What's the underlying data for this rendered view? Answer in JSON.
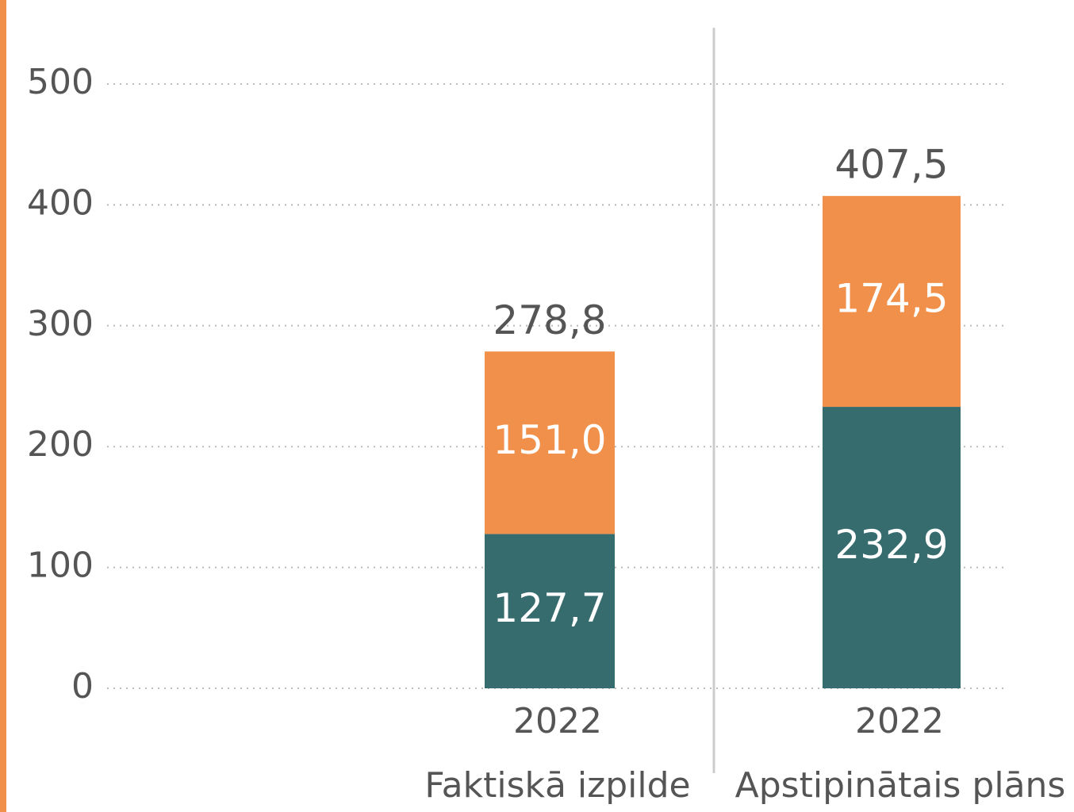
{
  "chart_data": {
    "type": "bar",
    "stacked": true,
    "groups": [
      "Faktiskā izpilde",
      "Apstipinātais plāns"
    ],
    "categories": [
      "2022",
      "2022"
    ],
    "series": [
      {
        "color": "#376c6e",
        "values": [
          127.7,
          232.9
        ],
        "value_labels": [
          "127,7",
          "232,9"
        ]
      },
      {
        "color": "#f0904a",
        "values": [
          151.0,
          174.5
        ],
        "value_labels": [
          "151,0",
          "174,5"
        ]
      }
    ],
    "totals": [
      278.8,
      407.5
    ],
    "total_labels": [
      "278,8",
      "407,5"
    ],
    "ylim": [
      0,
      500
    ],
    "yticks": [
      0,
      100,
      200,
      300,
      400,
      500
    ],
    "grid": true
  }
}
